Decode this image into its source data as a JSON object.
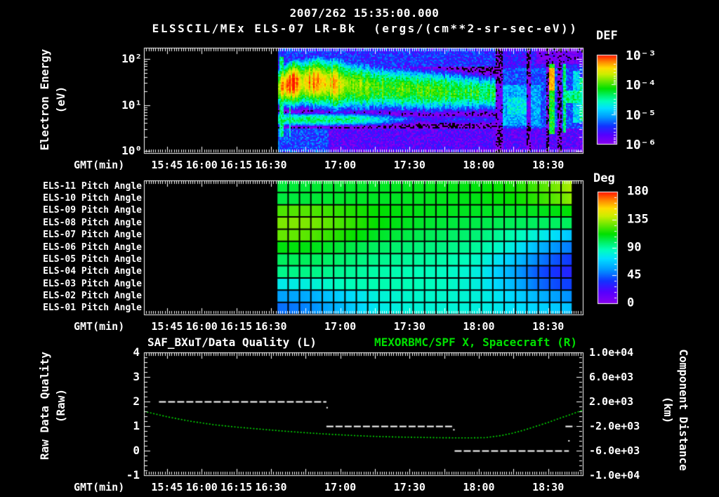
{
  "header": {
    "title": "2007/262 15:35:00.000",
    "subtitle": "ELSSCIL/MEx ELS-07 LR-Bk  (ergs/(cm**2-sr-sec-eV))"
  },
  "colors": {
    "background": "#000000",
    "text": "#ffffff",
    "accent_green": "#00e000",
    "frame_white": "#ffffff",
    "colormap_stops": [
      [
        0.0,
        "#8800ee"
      ],
      [
        0.1,
        "#5500ff"
      ],
      [
        0.2,
        "#1133ff"
      ],
      [
        0.3,
        "#0099ff"
      ],
      [
        0.4,
        "#00e0ff"
      ],
      [
        0.48,
        "#00ffbb"
      ],
      [
        0.55,
        "#00f060"
      ],
      [
        0.62,
        "#00e000"
      ],
      [
        0.7,
        "#66e800"
      ],
      [
        0.78,
        "#ccee00"
      ],
      [
        0.85,
        "#ffdd00"
      ],
      [
        0.92,
        "#ff8800"
      ],
      [
        1.0,
        "#ff1100"
      ]
    ]
  },
  "time_axis": {
    "label": "GMT(min)",
    "span_min": 190,
    "minor_tick_every_min": 1,
    "major_tick_every_min": 15,
    "ticks": [
      {
        "label": "15:45",
        "min": 10
      },
      {
        "label": "16:00",
        "min": 25
      },
      {
        "label": "16:15",
        "min": 40
      },
      {
        "label": "16:30",
        "min": 55
      },
      {
        "label": "17:00",
        "min": 85
      },
      {
        "label": "17:30",
        "min": 115
      },
      {
        "label": "18:00",
        "min": 145
      },
      {
        "label": "18:30",
        "min": 175
      }
    ]
  },
  "chart_data": [
    {
      "type": "heatmap",
      "name": "electron-energy-spectrogram",
      "ylabel": "Electron Energy",
      "ylabel2": "(eV)",
      "y_log_range": [
        -0.05,
        2.25
      ],
      "y_ticks": [
        {
          "label": "10²",
          "log": 2
        },
        {
          "label": "10¹",
          "log": 1
        },
        {
          "label": "10⁰",
          "log": 0
        }
      ],
      "colorbar": {
        "title": "DEF",
        "log_range": [
          -6,
          -3
        ],
        "ticks": [
          {
            "label": "10⁻³",
            "log": -3
          },
          {
            "label": "10⁻⁴",
            "log": -4
          },
          {
            "label": "10⁻⁵",
            "log": -5
          },
          {
            "label": "10⁻⁶",
            "log": -6
          }
        ]
      },
      "data_start_min": 58,
      "band": {
        "center": [
          [
            58,
            1.38
          ],
          [
            64,
            1.47
          ],
          [
            75,
            1.5
          ],
          [
            85,
            1.44
          ],
          [
            100,
            1.38
          ],
          [
            120,
            1.32
          ],
          [
            140,
            1.28
          ],
          [
            152,
            1.25
          ]
        ],
        "halfwidth": [
          [
            58,
            0.42
          ],
          [
            70,
            0.5
          ],
          [
            85,
            0.55
          ],
          [
            105,
            0.5
          ],
          [
            130,
            0.46
          ],
          [
            152,
            0.42
          ]
        ],
        "peak": [
          [
            58,
            -3.6
          ],
          [
            60,
            -3.35
          ],
          [
            62,
            -3.1
          ],
          [
            66,
            -3.08
          ],
          [
            68.5,
            -3.5
          ],
          [
            71,
            -3.4
          ],
          [
            74,
            -3.28
          ],
          [
            77,
            -3.32
          ],
          [
            80,
            -3.55
          ],
          [
            83,
            -3.4
          ],
          [
            86,
            -3.7
          ],
          [
            92,
            -3.85
          ],
          [
            100,
            -3.95
          ],
          [
            110,
            -4.0
          ],
          [
            120,
            -4.05
          ],
          [
            130,
            -4.1
          ],
          [
            140,
            -4.2
          ],
          [
            148,
            -4.25
          ],
          [
            152,
            -4.35
          ]
        ]
      },
      "low_band": {
        "center": 0.68,
        "halfwidth": 0.16,
        "peak": [
          [
            58,
            -4.35
          ],
          [
            78,
            -4.3
          ],
          [
            92,
            -4.45
          ],
          [
            102,
            -4.75
          ],
          [
            110,
            -5.2
          ],
          [
            118,
            -5.5
          ]
        ]
      },
      "post": {
        "t_start": 152.5,
        "base": -5.35,
        "cyan_patch": {
          "t0": 153,
          "t1": 172,
          "lo": 0.55,
          "hi": 1.45,
          "level": -5.0
        },
        "green_spot": {
          "t0": 157,
          "t1": 166,
          "lo": 0.8,
          "hi": 1.15,
          "level": -4.75
        }
      },
      "streaks": [
        {
          "t": 59.6,
          "w": 0.7,
          "level": -4.45,
          "lo": 0.3,
          "hi": 2.05
        },
        {
          "t": 63.3,
          "w": 0.5,
          "level": -4.55,
          "lo": 0.3,
          "hi": 1.05
        },
        {
          "t": 176.6,
          "w": 0.95,
          "level": -4.15,
          "lo": 0.35,
          "hi": 2.1,
          "core": {
            "lo": 1.3,
            "hi": 1.8,
            "level": -3.35
          }
        },
        {
          "t": 181.8,
          "w": 0.6,
          "level": -4.4,
          "lo": 0.4,
          "hi": 2.0
        },
        {
          "t": 187.3,
          "w": 1.5,
          "level": -4.85,
          "lo": 0.6,
          "hi": 1.75
        },
        {
          "t": 189.7,
          "w": 1.1,
          "level": -4.55,
          "lo": 0.65,
          "hi": 1.6
        }
      ],
      "right_band": {
        "t0": 182,
        "t1": 190.5,
        "lo": 1.05,
        "hi": 1.3,
        "level": -4.45
      },
      "dark_columns": [
        [
          152.6,
          155.2
        ],
        [
          165.8,
          167.6
        ],
        [
          174.2,
          175.6
        ],
        [
          178.8,
          180.6
        ]
      ],
      "noise": {
        "bottom_lo": 0.5,
        "bottom_level": -5.75,
        "bottom_level_early": -5.35,
        "top_level": -5.45,
        "amp": 0.6
      }
    },
    {
      "type": "heatmap-grid",
      "name": "pitch-angle-panel",
      "value_unit": "deg",
      "colorbar": {
        "title": "Deg",
        "range": [
          0,
          180
        ],
        "ticks": [
          {
            "label": "180",
            "v": 180
          },
          {
            "label": "135",
            "v": 135
          },
          {
            "label": "90",
            "v": 90
          },
          {
            "label": "45",
            "v": 45
          },
          {
            "label": "0",
            "v": 0
          }
        ]
      },
      "t_range": [
        57.5,
        185.5
      ],
      "n_cols": 26,
      "sample_times": [
        58,
        70,
        85,
        100,
        115,
        130,
        145,
        160,
        172,
        180,
        186
      ],
      "rows": [
        {
          "label": "ELS-11 Pitch Angle",
          "values": [
            104,
            105,
            106,
            107,
            108,
            109,
            110,
            114,
            122,
            130,
            137
          ]
        },
        {
          "label": "ELS-10 Pitch Angle",
          "values": [
            103,
            104,
            106,
            107,
            107,
            108,
            109,
            112,
            119,
            126,
            133
          ]
        },
        {
          "label": "ELS-09 Pitch Angle",
          "values": [
            122,
            124,
            118,
            112,
            109,
            108,
            107,
            107,
            108,
            110,
            112
          ]
        },
        {
          "label": "ELS-08 Pitch Angle",
          "values": [
            129,
            130,
            122,
            112,
            107,
            104,
            102,
            100,
            99,
            99,
            100
          ]
        },
        {
          "label": "ELS-07 Pitch Angle",
          "values": [
            126,
            125,
            116,
            107,
            102,
            99,
            96,
            88,
            78,
            70,
            64
          ]
        },
        {
          "label": "ELS-06 Pitch Angle",
          "values": [
            110,
            110,
            104,
            99,
            96,
            94,
            91,
            78,
            60,
            52,
            48
          ]
        },
        {
          "label": "ELS-05 Pitch Angle",
          "values": [
            99,
            100,
            97,
            93,
            91,
            89,
            84,
            66,
            48,
            40,
            36
          ]
        },
        {
          "label": "ELS-04 Pitch Angle",
          "values": [
            93,
            94,
            92,
            89,
            87,
            85,
            79,
            58,
            40,
            33,
            30
          ]
        },
        {
          "label": "ELS-03 Pitch Angle",
          "values": [
            76,
            79,
            86,
            88,
            87,
            85,
            79,
            62,
            45,
            39,
            38
          ]
        },
        {
          "label": "ELS-02 Pitch Angle",
          "values": [
            56,
            58,
            68,
            80,
            83,
            83,
            80,
            70,
            60,
            55,
            52
          ]
        },
        {
          "label": "ELS-01 Pitch Angle",
          "values": [
            46,
            50,
            62,
            76,
            81,
            81,
            79,
            73,
            68,
            66,
            63
          ]
        }
      ]
    },
    {
      "type": "line",
      "name": "quality-distance-panel",
      "titles": {
        "left": "SAF_BXuT/Data Quality (L)",
        "right": "MEXORBMC/SPF X, Spacecraft (R)"
      },
      "left_axis": {
        "label": "Raw Data Quality",
        "label2": "(Raw)",
        "range": [
          -1,
          4
        ],
        "ticks": [
          {
            "label": "4",
            "v": 4
          },
          {
            "label": "3",
            "v": 3
          },
          {
            "label": "2",
            "v": 2
          },
          {
            "label": "1",
            "v": 1
          },
          {
            "label": "0",
            "v": 0
          },
          {
            "label": "-1",
            "v": -1
          }
        ]
      },
      "right_axis": {
        "label": "Component Distance",
        "label2": "(km)",
        "range": [
          -10000,
          10000
        ],
        "ticks": [
          {
            "label": "1.0e+04",
            "v": 10000
          },
          {
            "label": "6.0e+03",
            "v": 6000
          },
          {
            "label": "2.0e+03",
            "v": 2000
          },
          {
            "label": "-2.0e+03",
            "v": -2000
          },
          {
            "label": "-6.0e+03",
            "v": -6000
          },
          {
            "label": "-1.0e+04",
            "v": -10000
          }
        ]
      },
      "quality_segments": [
        {
          "value": 2,
          "t0": 6.5,
          "t1": 79
        },
        {
          "value": 1,
          "t0": 79,
          "t1": 134
        },
        {
          "value": 0,
          "t0": 134.5,
          "t1": 184
        },
        {
          "value": 1,
          "t0": 182.5,
          "t1": 186.5
        }
      ],
      "quality_dots": [
        {
          "t": 79.3,
          "v": 1.75
        },
        {
          "t": 134.2,
          "v": 0.85
        },
        {
          "t": 184,
          "v": 0.4
        }
      ],
      "distance_km": [
        [
          0,
          400
        ],
        [
          10,
          -480
        ],
        [
          20,
          -1200
        ],
        [
          30,
          -1760
        ],
        [
          40,
          -2160
        ],
        [
          50,
          -2480
        ],
        [
          60,
          -2800
        ],
        [
          70,
          -3080
        ],
        [
          80,
          -3320
        ],
        [
          90,
          -3520
        ],
        [
          100,
          -3680
        ],
        [
          110,
          -3780
        ],
        [
          120,
          -3840
        ],
        [
          130,
          -3900
        ],
        [
          140,
          -3920
        ],
        [
          148,
          -3880
        ],
        [
          155,
          -3520
        ],
        [
          160,
          -3120
        ],
        [
          165,
          -2600
        ],
        [
          170,
          -2000
        ],
        [
          175,
          -1400
        ],
        [
          180,
          -720
        ],
        [
          185,
          -80
        ],
        [
          190,
          600
        ]
      ]
    }
  ]
}
